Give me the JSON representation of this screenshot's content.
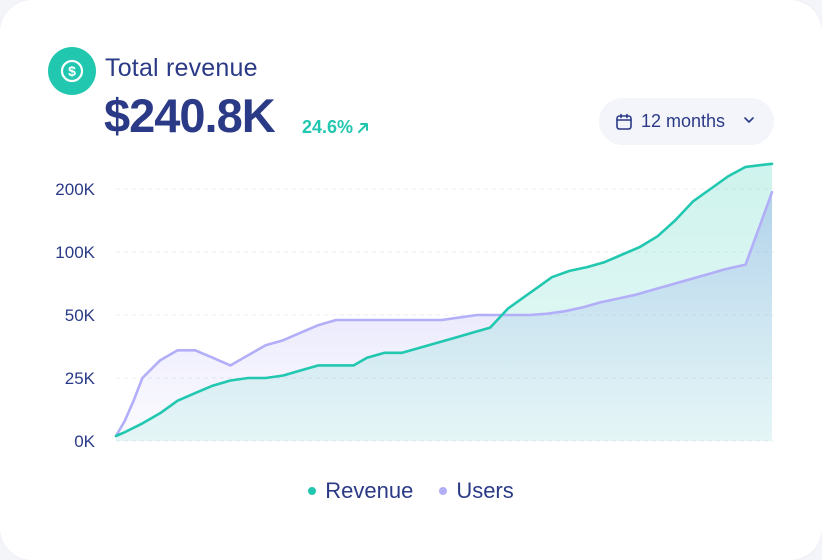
{
  "header": {
    "title": "Total revenue",
    "amount": "$240.8K",
    "change": "24.6%",
    "icon": "dollar-icon"
  },
  "filter": {
    "selected": "12 months",
    "icon": "calendar-icon"
  },
  "colors": {
    "revenue": "#22c7b0",
    "users": "#b3aef8",
    "text": "#2b3a86",
    "grid": "#e9ecf3"
  },
  "chart_data": {
    "type": "area",
    "title": "Total revenue",
    "xlabel": "",
    "ylabel": "",
    "y_ticks": [
      "0K",
      "25K",
      "50K",
      "100K",
      "200K"
    ],
    "y_scale": "categorical-tick (0K, 25K, 50K, 100K, 200K evenly spaced)",
    "grid": true,
    "legend": "bottom-center",
    "series": [
      {
        "name": "Revenue",
        "points": [
          [
            0,
            2
          ],
          [
            10,
            3.5
          ],
          [
            30,
            7
          ],
          [
            50,
            11
          ],
          [
            70,
            16
          ],
          [
            90,
            19
          ],
          [
            110,
            22
          ],
          [
            130,
            24
          ],
          [
            150,
            25
          ],
          [
            170,
            25
          ],
          [
            190,
            26
          ],
          [
            210,
            28
          ],
          [
            230,
            30
          ],
          [
            250,
            30
          ],
          [
            270,
            30
          ],
          [
            285,
            33
          ],
          [
            305,
            35
          ],
          [
            325,
            35
          ],
          [
            345,
            37
          ],
          [
            365,
            39
          ],
          [
            385,
            41
          ],
          [
            405,
            43
          ],
          [
            425,
            45
          ],
          [
            445,
            55
          ],
          [
            465,
            65
          ],
          [
            475,
            70
          ],
          [
            495,
            80
          ],
          [
            515,
            85
          ],
          [
            535,
            88
          ],
          [
            555,
            92
          ],
          [
            575,
            98
          ],
          [
            595,
            108
          ],
          [
            615,
            125
          ],
          [
            635,
            150
          ],
          [
            655,
            180
          ],
          [
            675,
            200
          ],
          [
            695,
            220
          ],
          [
            715,
            235
          ],
          [
            745,
            240
          ]
        ]
      },
      {
        "name": "Users",
        "points": [
          [
            0,
            2
          ],
          [
            10,
            8
          ],
          [
            20,
            16
          ],
          [
            30,
            25
          ],
          [
            50,
            32
          ],
          [
            70,
            36
          ],
          [
            90,
            36
          ],
          [
            110,
            33
          ],
          [
            130,
            30
          ],
          [
            150,
            34
          ],
          [
            170,
            38
          ],
          [
            190,
            40
          ],
          [
            210,
            43
          ],
          [
            230,
            46
          ],
          [
            250,
            48
          ],
          [
            270,
            48
          ],
          [
            290,
            48
          ],
          [
            310,
            48
          ],
          [
            330,
            48
          ],
          [
            350,
            48
          ],
          [
            370,
            48
          ],
          [
            390,
            49
          ],
          [
            410,
            50
          ],
          [
            430,
            50
          ],
          [
            450,
            50
          ],
          [
            470,
            50
          ],
          [
            490,
            51
          ],
          [
            510,
            53
          ],
          [
            530,
            56
          ],
          [
            550,
            60
          ],
          [
            570,
            63
          ],
          [
            590,
            66
          ],
          [
            610,
            70
          ],
          [
            630,
            74
          ],
          [
            650,
            78
          ],
          [
            670,
            82
          ],
          [
            690,
            86
          ],
          [
            715,
            90
          ],
          [
            745,
            195
          ]
        ]
      }
    ]
  },
  "legend": {
    "revenue_label": "Revenue",
    "users_label": "Users"
  }
}
